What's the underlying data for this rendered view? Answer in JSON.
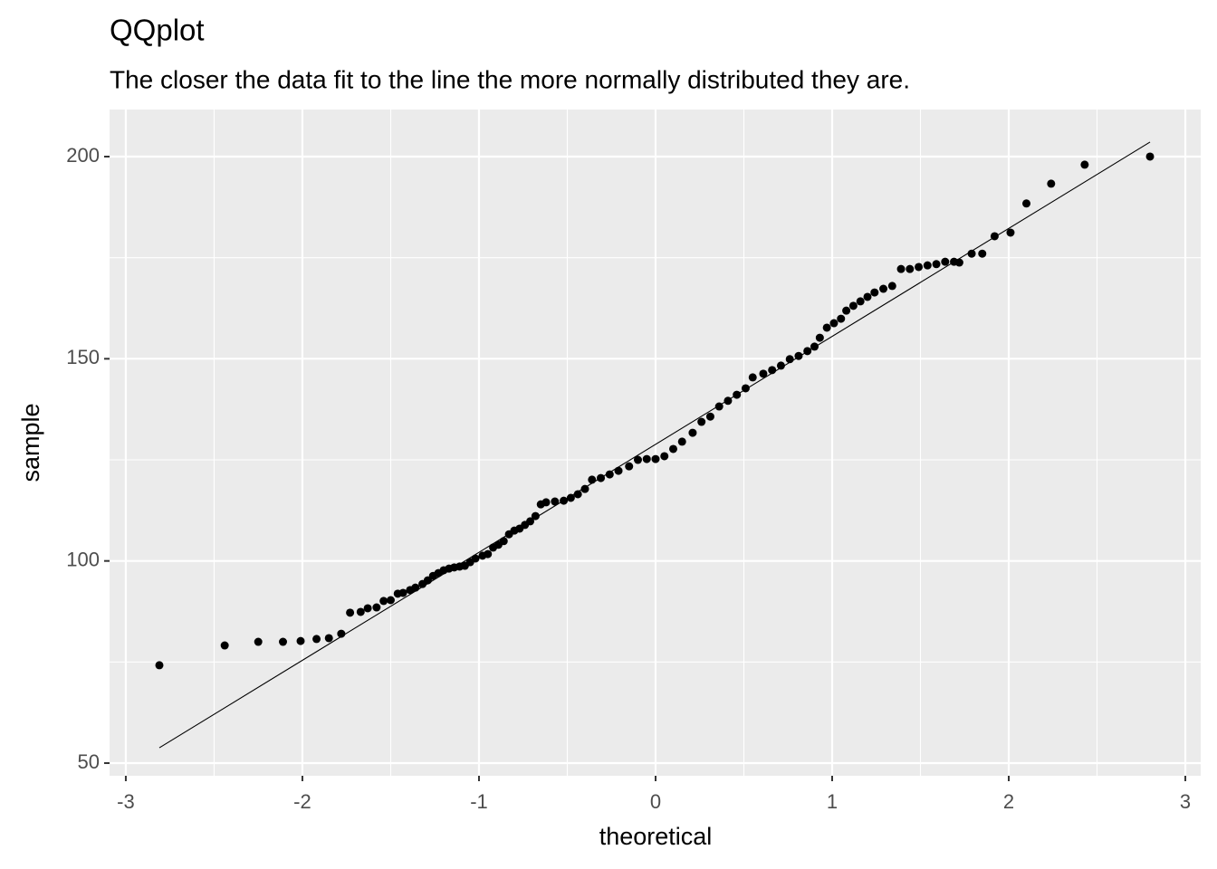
{
  "chart_data": {
    "type": "scatter",
    "title": "QQplot",
    "subtitle": "The closer the data fit to the line the more normally distributed they are.",
    "x_label": "theoretical",
    "y_label": "sample",
    "color": "#000000",
    "grid": true,
    "xlim": [
      -3.092,
      3.087
    ],
    "ylim": [
      46.87,
      211.64
    ],
    "xticks": [
      -3,
      -2,
      -1,
      0,
      1,
      2,
      3
    ],
    "yticks": [
      50,
      100,
      150,
      200
    ],
    "minor_xticks": [
      -2.5,
      -1.5,
      -0.5,
      0.5,
      1.5,
      2.5
    ],
    "minor_yticks": [
      75,
      125,
      175
    ],
    "x": [
      -2.81,
      -2.44,
      -2.25,
      -2.11,
      -2.01,
      -1.92,
      -1.85,
      -1.78,
      -1.73,
      -1.67,
      -1.63,
      -1.58,
      -1.54,
      -1.5,
      -1.46,
      -1.43,
      -1.39,
      -1.36,
      -1.32,
      -1.29,
      -1.26,
      -1.23,
      -1.2,
      -1.17,
      -1.14,
      -1.11,
      -1.08,
      -1.05,
      -1.02,
      -0.98,
      -0.95,
      -0.92,
      -0.89,
      -0.86,
      -0.83,
      -0.8,
      -0.77,
      -0.74,
      -0.71,
      -0.68,
      -0.65,
      -0.62,
      -0.57,
      -0.52,
      -0.48,
      -0.44,
      -0.4,
      -0.36,
      -0.31,
      -0.26,
      -0.21,
      -0.15,
      -0.1,
      -0.05,
      0,
      0.05,
      0.1,
      0.15,
      0.21,
      0.26,
      0.31,
      0.36,
      0.41,
      0.46,
      0.51,
      0.55,
      0.61,
      0.66,
      0.71,
      0.76,
      0.81,
      0.86,
      0.9,
      0.93,
      0.97,
      1.01,
      1.05,
      1.08,
      1.12,
      1.16,
      1.2,
      1.24,
      1.29,
      1.34,
      1.39,
      1.44,
      1.49,
      1.54,
      1.59,
      1.64,
      1.69,
      1.72,
      1.79,
      1.85,
      1.92,
      2.01,
      2.1,
      2.24,
      2.43,
      2.8
    ],
    "values": [
      74.2,
      79.1,
      80.0,
      80.0,
      80.2,
      80.7,
      80.9,
      82.0,
      87.2,
      87.4,
      88.3,
      88.5,
      90.1,
      90.3,
      91.9,
      92.1,
      92.8,
      93.4,
      94.3,
      95.2,
      96.3,
      97.0,
      97.7,
      98.1,
      98.4,
      98.6,
      98.8,
      99.7,
      100.6,
      101.3,
      101.7,
      103.3,
      104.0,
      104.9,
      106.6,
      107.5,
      108.0,
      108.9,
      109.8,
      111.1,
      114.0,
      114.5,
      114.7,
      114.9,
      115.6,
      116.5,
      117.8,
      120.1,
      120.5,
      121.4,
      122.3,
      123.4,
      125.0,
      125.2,
      125.2,
      125.9,
      127.7,
      129.5,
      131.7,
      134.4,
      135.7,
      138.2,
      139.6,
      141.1,
      142.7,
      145.4,
      146.3,
      147.2,
      148.3,
      149.9,
      150.7,
      151.9,
      153.0,
      155.2,
      157.7,
      158.8,
      159.9,
      161.9,
      163.1,
      164.2,
      165.3,
      166.4,
      167.3,
      168.0,
      172.2,
      172.2,
      172.7,
      173.1,
      173.4,
      174.0,
      174.0,
      173.8,
      176.0,
      176.0,
      180.3,
      181.2,
      188.4,
      193.3,
      198.0,
      200.0
    ],
    "reference_line": {
      "x": [
        -2.81,
        2.8
      ],
      "y": [
        53.8,
        203.6
      ]
    }
  }
}
